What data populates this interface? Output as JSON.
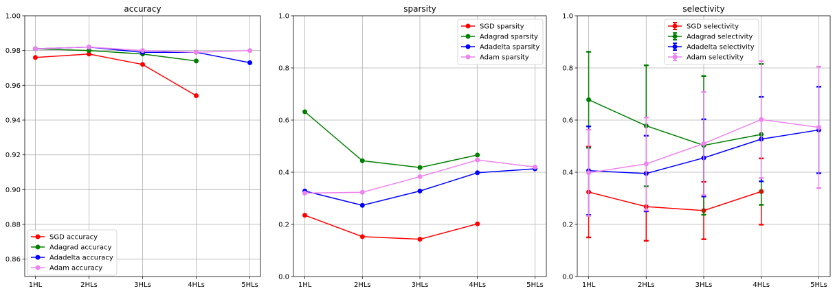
{
  "chart_data": [
    {
      "type": "line",
      "title": "accuracy",
      "xlabel": "",
      "ylabel": "",
      "categories": [
        "1HL",
        "2HLs",
        "3HLs",
        "4HLs",
        "5HLs"
      ],
      "ylim": [
        0.85,
        1.0
      ],
      "yticks": [
        "0.86",
        "0.88",
        "0.90",
        "0.92",
        "0.94",
        "0.96",
        "0.98",
        "1.00"
      ],
      "ytick_values": [
        0.86,
        0.88,
        0.9,
        0.92,
        0.94,
        0.96,
        0.98,
        1.0
      ],
      "grid": true,
      "legend_position": "lower-left",
      "series": [
        {
          "name": "SGD accuracy",
          "color": "#ff0000",
          "values": [
            0.976,
            0.978,
            0.972,
            0.954,
            null
          ]
        },
        {
          "name": "Adagrad accuracy",
          "color": "#008000",
          "values": [
            0.981,
            0.98,
            0.978,
            0.974,
            null
          ]
        },
        {
          "name": "Adadelta accuracy",
          "color": "#0000ff",
          "values": [
            0.981,
            0.982,
            0.979,
            0.979,
            0.973
          ]
        },
        {
          "name": "Adam accuracy",
          "color": "#ee82ee",
          "values": [
            0.981,
            0.982,
            0.98,
            0.979,
            0.98
          ]
        }
      ]
    },
    {
      "type": "line",
      "title": "sparsity",
      "xlabel": "",
      "ylabel": "",
      "categories": [
        "1HL",
        "2HLs",
        "3HLs",
        "4HLs",
        "5HLs"
      ],
      "ylim": [
        0.0,
        1.0
      ],
      "yticks": [
        "0.0",
        "0.2",
        "0.4",
        "0.6",
        "0.8",
        "1.0"
      ],
      "ytick_values": [
        0.0,
        0.2,
        0.4,
        0.6,
        0.8,
        1.0
      ],
      "grid": true,
      "legend_position": "upper-right",
      "series": [
        {
          "name": "SGD sparsity",
          "color": "#ff0000",
          "values": [
            0.235,
            0.153,
            0.143,
            0.202,
            null
          ]
        },
        {
          "name": "Adagrad sparsity",
          "color": "#008000",
          "values": [
            0.632,
            0.444,
            0.418,
            0.466,
            null
          ]
        },
        {
          "name": "Adadelta sparsity",
          "color": "#0000ff",
          "values": [
            0.328,
            0.273,
            0.328,
            0.398,
            0.413
          ]
        },
        {
          "name": "Adam sparsity",
          "color": "#ee82ee",
          "values": [
            0.32,
            0.323,
            0.383,
            0.447,
            0.42
          ]
        }
      ]
    },
    {
      "type": "line",
      "title": "selectivity",
      "xlabel": "",
      "ylabel": "",
      "categories": [
        "1HL",
        "2HLs",
        "3HLs",
        "4HLs",
        "5HLs"
      ],
      "ylim": [
        0.0,
        1.0
      ],
      "yticks": [
        "0.0",
        "0.2",
        "0.4",
        "0.6",
        "0.8",
        "1.0"
      ],
      "ytick_values": [
        0.0,
        0.2,
        0.4,
        0.6,
        0.8,
        1.0
      ],
      "grid": true,
      "legend_position": "upper-center",
      "error_bars": true,
      "series": [
        {
          "name": "SGD selectivity",
          "color": "#ff0000",
          "values": [
            0.324,
            0.268,
            0.253,
            0.326,
            null
          ],
          "errors": [
            0.174,
            0.131,
            0.11,
            0.127,
            null
          ]
        },
        {
          "name": "Adagrad selectivity",
          "color": "#008000",
          "values": [
            0.678,
            0.578,
            0.503,
            0.545,
            null
          ],
          "errors": [
            0.184,
            0.232,
            0.266,
            0.27,
            null
          ]
        },
        {
          "name": "Adadelta selectivity",
          "color": "#0000ff",
          "values": [
            0.406,
            0.395,
            0.455,
            0.527,
            0.562
          ],
          "errors": [
            0.17,
            0.145,
            0.148,
            0.162,
            0.166
          ]
        },
        {
          "name": "Adam selectivity",
          "color": "#ee82ee",
          "values": [
            0.398,
            0.432,
            0.51,
            0.602,
            0.572
          ],
          "errors": [
            0.165,
            0.178,
            0.198,
            0.224,
            0.233
          ]
        }
      ]
    }
  ]
}
